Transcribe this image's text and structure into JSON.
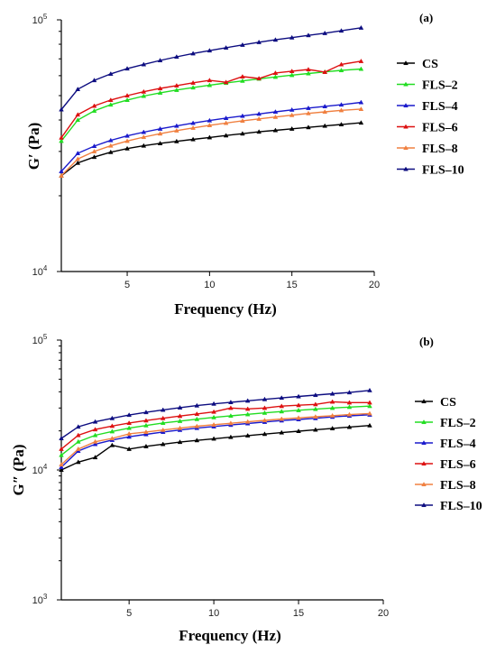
{
  "chart_data": [
    {
      "type": "line",
      "panel_label": "(a)",
      "xlabel": "Frequency (Hz)",
      "ylabel": "G′ (Pa)",
      "yscale": "log",
      "xlim": [
        1,
        20
      ],
      "ylim": [
        10000,
        100000
      ],
      "xticks": [
        5,
        10,
        15,
        20
      ],
      "yticks": [
        {
          "value": 10000,
          "base": "10",
          "exp": "4"
        },
        {
          "value": 100000,
          "base": "10",
          "exp": "5"
        }
      ],
      "legend_position": "right",
      "x": [
        1,
        2,
        3,
        4,
        5,
        6,
        7,
        8,
        9,
        10,
        11,
        12,
        13,
        14,
        15,
        16,
        17,
        18,
        19.2
      ],
      "series": [
        {
          "name": "CS",
          "color": "#000000",
          "values": [
            24000,
            27000,
            28500,
            29800,
            30800,
            31600,
            32300,
            32900,
            33500,
            34100,
            34700,
            35300,
            35900,
            36400,
            36900,
            37400,
            37900,
            38400,
            39000
          ]
        },
        {
          "name": "FLS–2",
          "color": "#22dd22",
          "values": [
            33000,
            40000,
            43500,
            46000,
            48000,
            49800,
            51300,
            52600,
            53800,
            55000,
            56100,
            57200,
            58300,
            59300,
            60300,
            61200,
            62100,
            63000,
            63800
          ]
        },
        {
          "name": "FLS–4",
          "color": "#1a1acc",
          "values": [
            25000,
            29500,
            31500,
            33200,
            34600,
            35800,
            36900,
            37900,
            38900,
            39800,
            40700,
            41500,
            42300,
            43100,
            43900,
            44600,
            45300,
            46000,
            47000
          ]
        },
        {
          "name": "FLS–6",
          "color": "#dd1111",
          "values": [
            34000,
            42000,
            45500,
            48000,
            50000,
            51800,
            53400,
            54800,
            56200,
            57500,
            56500,
            59500,
            58500,
            61500,
            62500,
            63500,
            62000,
            66500,
            68500
          ]
        },
        {
          "name": "FLS–8",
          "color": "#f08040",
          "values": [
            24000,
            28000,
            30000,
            31600,
            33000,
            34200,
            35300,
            36300,
            37200,
            38100,
            38900,
            39700,
            40400,
            41100,
            41800,
            42500,
            43100,
            43700,
            44200
          ]
        },
        {
          "name": "FLS–10",
          "color": "#0d0d80",
          "values": [
            44000,
            53000,
            57500,
            61000,
            64000,
            66500,
            69000,
            71300,
            73500,
            75500,
            77500,
            79500,
            81500,
            83300,
            85000,
            86800,
            88500,
            90500,
            93000
          ]
        }
      ]
    },
    {
      "type": "line",
      "panel_label": "(b)",
      "xlabel": "Frequency (Hz)",
      "ylabel": "G″ (Pa)",
      "yscale": "log",
      "xlim": [
        1,
        20
      ],
      "ylim": [
        1000,
        100000
      ],
      "xticks": [
        5,
        10,
        15,
        20
      ],
      "yticks": [
        {
          "value": 1000,
          "base": "10",
          "exp": "3"
        },
        {
          "value": 10000,
          "base": "10",
          "exp": "4"
        },
        {
          "value": 100000,
          "base": "10",
          "exp": "5"
        }
      ],
      "legend_position": "right",
      "x": [
        1,
        2,
        3,
        4,
        5,
        6,
        7,
        8,
        9,
        10,
        11,
        12,
        13,
        14,
        15,
        16,
        17,
        18,
        19.2
      ],
      "series": [
        {
          "name": "CS",
          "color": "#000000",
          "values": [
            10000,
            11500,
            12500,
            15500,
            14500,
            15200,
            15800,
            16400,
            16900,
            17400,
            17900,
            18400,
            18900,
            19400,
            19900,
            20400,
            20900,
            21400,
            22000
          ]
        },
        {
          "name": "FLS–2",
          "color": "#22dd22",
          "values": [
            13000,
            16500,
            18500,
            19800,
            21000,
            22000,
            23000,
            23800,
            24600,
            25400,
            26100,
            26800,
            27500,
            28200,
            28800,
            29400,
            30000,
            30500,
            31000
          ]
        },
        {
          "name": "FLS–4",
          "color": "#1a1acc",
          "values": [
            10500,
            14000,
            15800,
            17000,
            18000,
            18800,
            19600,
            20300,
            21000,
            21600,
            22200,
            22800,
            23400,
            24000,
            24500,
            25000,
            25600,
            26100,
            26600
          ]
        },
        {
          "name": "FLS–6",
          "color": "#dd1111",
          "values": [
            14500,
            18500,
            20500,
            21800,
            23000,
            24000,
            25000,
            26000,
            27000,
            28000,
            30000,
            29500,
            30000,
            31000,
            31500,
            32000,
            33500,
            33000,
            33000
          ]
        },
        {
          "name": "FLS–8",
          "color": "#f08040",
          "values": [
            11000,
            14500,
            16500,
            17500,
            19000,
            19600,
            20300,
            21000,
            21700,
            22300,
            22900,
            23500,
            24100,
            24700,
            25200,
            25700,
            26200,
            26700,
            27200
          ]
        },
        {
          "name": "FLS–10",
          "color": "#0d0d80",
          "values": [
            17500,
            21500,
            23500,
            25000,
            26500,
            27800,
            29000,
            30200,
            31300,
            32300,
            33200,
            34100,
            35000,
            35900,
            36800,
            37700,
            38600,
            39500,
            41000
          ]
        }
      ]
    }
  ]
}
